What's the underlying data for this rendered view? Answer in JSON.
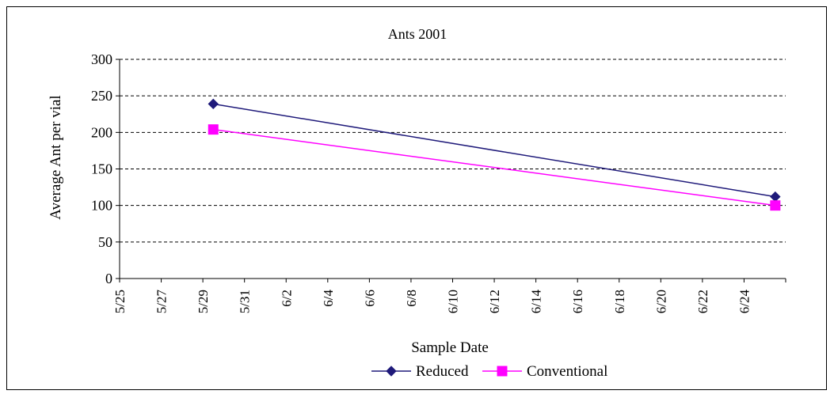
{
  "chart_data": {
    "type": "line",
    "title": "Ants  2001",
    "xlabel": "Sample Date",
    "ylabel": "Average Ant per vial",
    "x_tick_labels": [
      "5/25",
      "5/27",
      "5/29",
      "5/31",
      "6/2",
      "6/4",
      "6/6",
      "6/8",
      "6/10",
      "6/12",
      "6/14",
      "6/16",
      "6/18",
      "6/20",
      "6/22",
      "6/24"
    ],
    "x_tick_days": [
      0,
      2,
      4,
      6,
      8,
      10,
      12,
      14,
      16,
      18,
      20,
      22,
      24,
      26,
      28,
      30
    ],
    "xlim_days": [
      0,
      32
    ],
    "ylim": [
      0,
      300
    ],
    "y_ticks": [
      0,
      50,
      100,
      150,
      200,
      250,
      300
    ],
    "grid": "horizontal dashed",
    "legend": "bottom",
    "series": [
      {
        "name": "Reduced",
        "color": "#1F1A7A",
        "marker": "diamond",
        "x": [
          "5/29",
          "6/25"
        ],
        "x_days": [
          4.5,
          31.5
        ],
        "values": [
          239,
          112
        ]
      },
      {
        "name": "Conventional",
        "color": "#FF00FF",
        "marker": "square",
        "x": [
          "5/29",
          "6/25"
        ],
        "x_days": [
          4.5,
          31.5
        ],
        "values": [
          204,
          100
        ]
      }
    ]
  }
}
